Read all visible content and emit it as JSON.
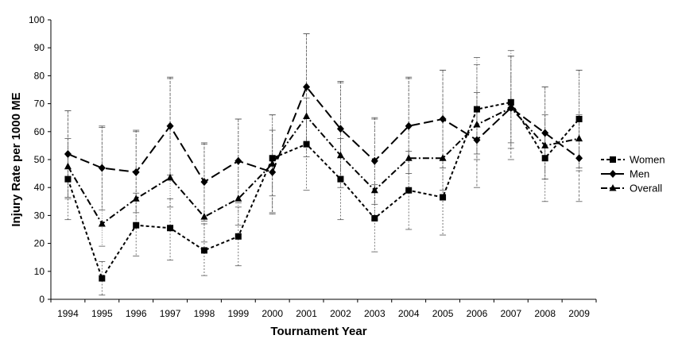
{
  "chart_data": {
    "type": "line",
    "xlabel": "Tournament Year",
    "ylabel": "Injury Rate per 1000 ME",
    "ylim": [
      0,
      100
    ],
    "yticks": [
      0,
      10,
      20,
      30,
      40,
      50,
      60,
      70,
      80,
      90,
      100
    ],
    "categories": [
      "1994",
      "1995",
      "1996",
      "1997",
      "1998",
      "1999",
      "2000",
      "2001",
      "2002",
      "2003",
      "2004",
      "2005",
      "2006",
      "2007",
      "2008",
      "2009"
    ],
    "grid": false,
    "legend_position": "right",
    "error_bars": true,
    "series": [
      {
        "name": "Women",
        "marker": "square",
        "dash": "short-dash",
        "color": "#000000",
        "values": [
          43,
          7.5,
          26.5,
          25.5,
          17.5,
          22.5,
          50.5,
          55.5,
          43,
          29,
          39,
          36.5,
          68,
          70.5,
          50.5,
          64.5
        ],
        "err_low": [
          28.5,
          1.5,
          15.5,
          14,
          8.5,
          12,
          31,
          39,
          28.5,
          17,
          25,
          23,
          52,
          54,
          35,
          47
        ],
        "err_high": [
          57.5,
          13.5,
          38,
          36,
          27,
          33,
          66,
          72,
          57.5,
          41,
          53,
          50,
          84,
          87,
          66,
          82
        ]
      },
      {
        "name": "Men",
        "marker": "diamond",
        "dash": "long-dash",
        "color": "#000000",
        "values": [
          52,
          47,
          45.5,
          62,
          42,
          49.5,
          45.5,
          76,
          61,
          49.5,
          62,
          64.5,
          57,
          68.5,
          59.5,
          50.5
        ],
        "err_low": [
          36.5,
          32,
          31,
          44.5,
          28,
          34.5,
          30.5,
          56,
          44,
          34,
          45,
          47,
          40,
          50,
          43,
          35
        ],
        "err_high": [
          67.5,
          62,
          60.5,
          79.5,
          56,
          64.5,
          60.5,
          95,
          78,
          65,
          79.5,
          82,
          74,
          87,
          76,
          66
        ]
      },
      {
        "name": "Overall",
        "marker": "triangle",
        "dash": "dash-dot",
        "color": "#000000",
        "values": [
          47.5,
          27,
          36,
          43.5,
          29.5,
          36,
          48.5,
          65.5,
          51.5,
          39,
          50.5,
          50.5,
          62.5,
          68.5,
          55,
          57.5
        ],
        "err_low": [
          36,
          19,
          27,
          33,
          20.5,
          26.5,
          37,
          51,
          40,
          28.5,
          39,
          39,
          50,
          56,
          43,
          46
        ],
        "err_high": [
          67.5,
          61.5,
          60,
          79,
          55.5,
          64.5,
          66,
          95,
          77.5,
          64.5,
          79,
          82,
          86.5,
          89,
          76,
          82
        ]
      }
    ]
  }
}
